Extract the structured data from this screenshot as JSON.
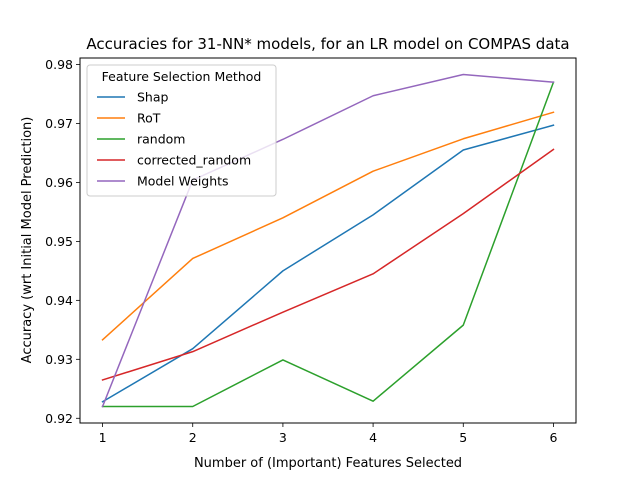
{
  "chart_data": {
    "type": "line",
    "title": "Accuracies for 31-NN* models, for an LR model on COMPAS data",
    "xlabel": "Number of (Important) Features Selected",
    "ylabel": "Accuracy (wrt Initial Model Prediction)",
    "x": [
      1,
      2,
      3,
      4,
      5,
      6
    ],
    "xticks": [
      "1",
      "2",
      "3",
      "4",
      "5",
      "6"
    ],
    "yticks": [
      "0.92",
      "0.93",
      "0.94",
      "0.95",
      "0.96",
      "0.97",
      "0.98"
    ],
    "xlim": [
      0.75,
      6.25
    ],
    "ylim": [
      0.9192,
      0.9811
    ],
    "grid": false,
    "legend": {
      "title": "Feature Selection Method",
      "placement": "upper-left"
    },
    "series": [
      {
        "name": "Shap",
        "color": "#1f77b4",
        "values": [
          0.9228,
          0.9318,
          0.945,
          0.9545,
          0.9655,
          0.9697
        ]
      },
      {
        "name": "RoT",
        "color": "#ff7f0e",
        "values": [
          0.9333,
          0.9471,
          0.954,
          0.9619,
          0.9674,
          0.9719
        ]
      },
      {
        "name": "random",
        "color": "#2ca02c",
        "values": [
          0.922,
          0.922,
          0.9299,
          0.9229,
          0.9358,
          0.977
        ]
      },
      {
        "name": "corrected_random",
        "color": "#d62728",
        "values": [
          0.9265,
          0.9313,
          0.938,
          0.9445,
          0.9547,
          0.9656
        ]
      },
      {
        "name": "Model Weights",
        "color": "#9467bd",
        "values": [
          0.922,
          0.9604,
          0.9673,
          0.9747,
          0.9783,
          0.977
        ]
      }
    ]
  }
}
